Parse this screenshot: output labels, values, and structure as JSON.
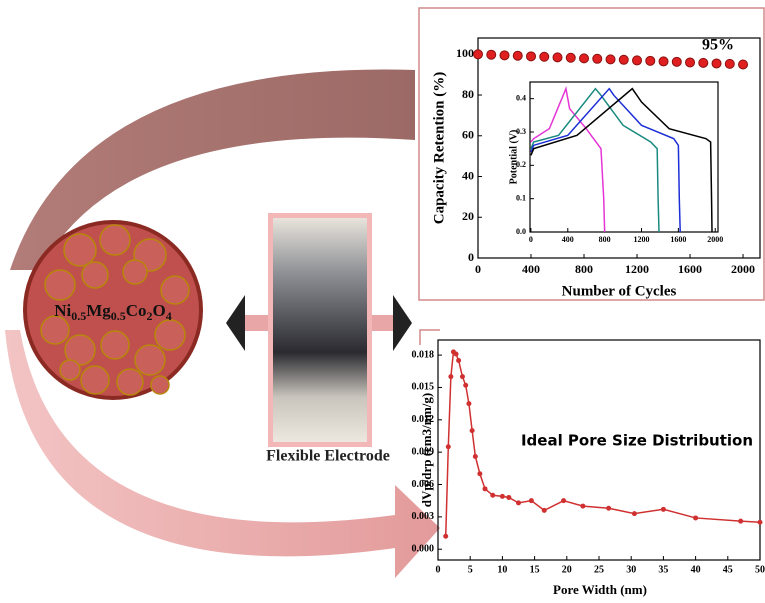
{
  "labels": {
    "formula": [
      "Ni",
      "0.5",
      "Mg",
      "0.5",
      "Co",
      "2",
      "O",
      "4"
    ],
    "photo_caption": "Flexible Electrode"
  },
  "chart_data": [
    {
      "type": "scatter",
      "xlabel": "Number of Cycles",
      "ylabel": "Capacity Retention (%)",
      "annotation": "95%",
      "color": "#e02020",
      "x": [
        0,
        100,
        200,
        300,
        400,
        500,
        600,
        700,
        800,
        900,
        1000,
        1100,
        1200,
        1300,
        1400,
        1500,
        1600,
        1700,
        1800,
        1900,
        2000
      ],
      "values": [
        100,
        99.8,
        99.5,
        99.3,
        99,
        98.8,
        98.5,
        98.3,
        98,
        97.8,
        97.5,
        97.3,
        97,
        96.8,
        96.5,
        96.3,
        96,
        95.8,
        95.5,
        95.3,
        95
      ],
      "xlim": [
        0,
        2128
      ],
      "ylim": [
        0,
        108
      ],
      "xticks": [
        0,
        400,
        800,
        1200,
        1600,
        2000
      ],
      "yticks": [
        0,
        20,
        40,
        60,
        80,
        100
      ]
    },
    {
      "type": "line",
      "ylabel": "Potential (V)",
      "series": [
        {
          "color": "#e535d6",
          "x": [
            0,
            30,
            200,
            380,
            420,
            600,
            760,
            790,
            800
          ],
          "values": [
            0.27,
            0.28,
            0.31,
            0.43,
            0.37,
            0.31,
            0.25,
            0.1,
            0
          ]
        },
        {
          "color": "#1a8a80",
          "x": [
            0,
            30,
            300,
            700,
            760,
            1000,
            1300,
            1370,
            1380,
            1390
          ],
          "values": [
            0.25,
            0.27,
            0.29,
            0.43,
            0.41,
            0.32,
            0.27,
            0.25,
            0.1,
            0
          ]
        },
        {
          "color": "#1c2fd6",
          "x": [
            0,
            30,
            400,
            850,
            900,
            1200,
            1550,
            1600,
            1610,
            1620
          ],
          "values": [
            0.24,
            0.26,
            0.29,
            0.43,
            0.41,
            0.32,
            0.28,
            0.26,
            0.1,
            0
          ]
        },
        {
          "color": "#000000",
          "x": [
            0,
            30,
            500,
            1100,
            1200,
            1500,
            1900,
            1950,
            1960,
            1965
          ],
          "values": [
            0.23,
            0.25,
            0.29,
            0.43,
            0.39,
            0.31,
            0.28,
            0.27,
            0.1,
            0
          ]
        }
      ],
      "xlim": [
        -10,
        2030
      ],
      "ylim": [
        0,
        0.45
      ],
      "xticks": [
        0,
        400,
        800,
        1200,
        1600,
        2000
      ],
      "yticks": [
        {
          "value": 0,
          "label": "0.0"
        },
        0.1,
        0.2,
        0.3,
        0.4
      ]
    },
    {
      "type": "line",
      "markers": true,
      "xlabel": "Pore Width (nm)",
      "ylabel": "dVp/drp (cm3/nm/g)",
      "annotation": "Ideal Pore Size Distribution",
      "color": "#d03030",
      "x": [
        1.2,
        1.6,
        2.0,
        2.4,
        2.8,
        3.2,
        3.8,
        4.3,
        4.8,
        5.3,
        5.8,
        6.5,
        7.3,
        8.5,
        10,
        11,
        12.5,
        14.5,
        16.5,
        19.5,
        22.5,
        26.5,
        30.5,
        35,
        40,
        47,
        50
      ],
      "values": [
        0.0012,
        0.0095,
        0.016,
        0.0183,
        0.0181,
        0.0175,
        0.016,
        0.0152,
        0.0135,
        0.011,
        0.0086,
        0.007,
        0.0056,
        0.005,
        0.0049,
        0.0048,
        0.0043,
        0.0045,
        0.0036,
        0.0045,
        0.004,
        0.0038,
        0.0033,
        0.0037,
        0.0029,
        0.0026,
        0.0025
      ],
      "xlim": [
        0,
        50
      ],
      "ylim": [
        -0.001,
        0.0194
      ],
      "xticks": [
        0,
        5,
        10,
        15,
        20,
        25,
        30,
        35,
        40,
        45,
        50
      ],
      "yticks": [
        {
          "value": 0,
          "label": "0.000"
        },
        0.003,
        0.006,
        0.009,
        0.012,
        0.015,
        0.018
      ]
    }
  ]
}
